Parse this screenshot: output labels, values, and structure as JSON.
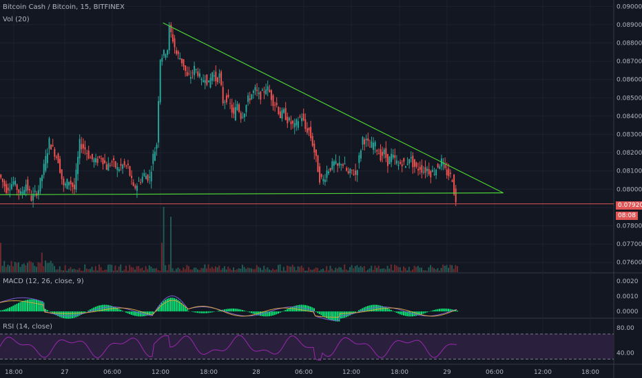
{
  "header": {
    "symbol": "Bitcoin Cash / Bitcoin, 15, BITFINEX",
    "volume_label": "Vol (20)",
    "macd_label": "MACD (12, 26, close, 9)",
    "rsi_label": "RSI (14, close)"
  },
  "price_tag": {
    "value": "0.07920",
    "countdown": "08:08"
  },
  "colors": {
    "background": "#131722",
    "up": "#26a69a",
    "down": "#ef5350",
    "trendline": "#4cd137",
    "price_line": "#e05656",
    "macd_line": "#7a5cd6",
    "signal_line": "#d9a440",
    "histogram": "#00e676",
    "rsi_line": "#9c27b0",
    "rsi_band": "#2a1f3d"
  },
  "chart_data": [
    {
      "type": "candlestick",
      "name": "price",
      "y_ticks": [
        "0.09000",
        "0.08900",
        "0.08800",
        "0.08700",
        "0.08600",
        "0.08500",
        "0.08400",
        "0.08300",
        "0.08200",
        "0.08100",
        "0.08000",
        "0.07900",
        "0.07800",
        "0.07700",
        "0.07600"
      ],
      "ylim": [
        0.0755,
        0.0902
      ],
      "x_ticks": [
        "18:00",
        "27",
        "06:00",
        "12:00",
        "18:00",
        "28",
        "06:00",
        "12:00",
        "18:00",
        "29",
        "06:00",
        "12:00",
        "18:00"
      ],
      "close_points": [
        {
          "t": 0,
          "v": 0.0808
        },
        {
          "t": 4,
          "v": 0.08
        },
        {
          "t": 8,
          "v": 0.0804
        },
        {
          "t": 12,
          "v": 0.0797
        },
        {
          "t": 15,
          "v": 0.0803
        },
        {
          "t": 18,
          "v": 0.0795
        },
        {
          "t": 22,
          "v": 0.08
        },
        {
          "t": 25,
          "v": 0.0812
        },
        {
          "t": 28,
          "v": 0.0826
        },
        {
          "t": 30,
          "v": 0.0822
        },
        {
          "t": 33,
          "v": 0.0816
        },
        {
          "t": 36,
          "v": 0.0801
        },
        {
          "t": 39,
          "v": 0.0805
        },
        {
          "t": 42,
          "v": 0.08
        },
        {
          "t": 45,
          "v": 0.0825
        },
        {
          "t": 48,
          "v": 0.0822
        },
        {
          "t": 51,
          "v": 0.0817
        },
        {
          "t": 54,
          "v": 0.0815
        },
        {
          "t": 57,
          "v": 0.0818
        },
        {
          "t": 60,
          "v": 0.0812
        },
        {
          "t": 63,
          "v": 0.0815
        },
        {
          "t": 66,
          "v": 0.0811
        },
        {
          "t": 69,
          "v": 0.0813
        },
        {
          "t": 72,
          "v": 0.0812
        },
        {
          "t": 75,
          "v": 0.08
        },
        {
          "t": 78,
          "v": 0.0804
        },
        {
          "t": 81,
          "v": 0.0808
        },
        {
          "t": 84,
          "v": 0.0806
        },
        {
          "t": 86,
          "v": 0.0818
        },
        {
          "t": 88,
          "v": 0.0825
        },
        {
          "t": 89,
          "v": 0.085
        },
        {
          "t": 90,
          "v": 0.0872
        },
        {
          "t": 92,
          "v": 0.0874
        },
        {
          "t": 94,
          "v": 0.0877
        },
        {
          "t": 95,
          "v": 0.0888
        },
        {
          "t": 97,
          "v": 0.0882
        },
        {
          "t": 99,
          "v": 0.0874
        },
        {
          "t": 101,
          "v": 0.0872
        },
        {
          "t": 103,
          "v": 0.0868
        },
        {
          "t": 105,
          "v": 0.0861
        },
        {
          "t": 107,
          "v": 0.0862
        },
        {
          "t": 109,
          "v": 0.0866
        },
        {
          "t": 111,
          "v": 0.0864
        },
        {
          "t": 113,
          "v": 0.0858
        },
        {
          "t": 115,
          "v": 0.0862
        },
        {
          "t": 117,
          "v": 0.0857
        },
        {
          "t": 119,
          "v": 0.0864
        },
        {
          "t": 121,
          "v": 0.086
        },
        {
          "t": 123,
          "v": 0.0862
        },
        {
          "t": 125,
          "v": 0.0848
        },
        {
          "t": 127,
          "v": 0.085
        },
        {
          "t": 129,
          "v": 0.0846
        },
        {
          "t": 131,
          "v": 0.084
        },
        {
          "t": 133,
          "v": 0.0847
        },
        {
          "t": 135,
          "v": 0.084
        },
        {
          "t": 137,
          "v": 0.0843
        },
        {
          "t": 139,
          "v": 0.0849
        },
        {
          "t": 141,
          "v": 0.0852
        },
        {
          "t": 143,
          "v": 0.0854
        },
        {
          "t": 145,
          "v": 0.0851
        },
        {
          "t": 147,
          "v": 0.0852
        },
        {
          "t": 149,
          "v": 0.0856
        },
        {
          "t": 151,
          "v": 0.0853
        },
        {
          "t": 153,
          "v": 0.0848
        },
        {
          "t": 155,
          "v": 0.0846
        },
        {
          "t": 157,
          "v": 0.084
        },
        {
          "t": 159,
          "v": 0.0842
        },
        {
          "t": 161,
          "v": 0.0838
        },
        {
          "t": 163,
          "v": 0.0836
        },
        {
          "t": 165,
          "v": 0.0834
        },
        {
          "t": 167,
          "v": 0.0838
        },
        {
          "t": 169,
          "v": 0.084
        },
        {
          "t": 171,
          "v": 0.0833
        },
        {
          "t": 173,
          "v": 0.0832
        },
        {
          "t": 175,
          "v": 0.0825
        },
        {
          "t": 177,
          "v": 0.0816
        },
        {
          "t": 179,
          "v": 0.0806
        },
        {
          "t": 181,
          "v": 0.0805
        },
        {
          "t": 183,
          "v": 0.081
        },
        {
          "t": 185,
          "v": 0.0812
        },
        {
          "t": 187,
          "v": 0.0814
        },
        {
          "t": 189,
          "v": 0.0812
        },
        {
          "t": 191,
          "v": 0.0815
        },
        {
          "t": 193,
          "v": 0.0812
        },
        {
          "t": 195,
          "v": 0.0808
        },
        {
          "t": 197,
          "v": 0.081
        },
        {
          "t": 199,
          "v": 0.0808
        },
        {
          "t": 201,
          "v": 0.0817
        },
        {
          "t": 203,
          "v": 0.0828
        },
        {
          "t": 205,
          "v": 0.0826
        },
        {
          "t": 207,
          "v": 0.0823
        },
        {
          "t": 209,
          "v": 0.0825
        },
        {
          "t": 211,
          "v": 0.0822
        },
        {
          "t": 213,
          "v": 0.0818
        },
        {
          "t": 215,
          "v": 0.082
        },
        {
          "t": 217,
          "v": 0.0815
        },
        {
          "t": 219,
          "v": 0.0818
        },
        {
          "t": 221,
          "v": 0.0816
        },
        {
          "t": 223,
          "v": 0.0813
        },
        {
          "t": 225,
          "v": 0.0815
        },
        {
          "t": 227,
          "v": 0.0812
        },
        {
          "t": 229,
          "v": 0.0818
        },
        {
          "t": 231,
          "v": 0.0814
        },
        {
          "t": 233,
          "v": 0.0811
        },
        {
          "t": 235,
          "v": 0.0812
        },
        {
          "t": 237,
          "v": 0.081
        },
        {
          "t": 239,
          "v": 0.0811
        },
        {
          "t": 241,
          "v": 0.0809
        },
        {
          "t": 243,
          "v": 0.081
        },
        {
          "t": 245,
          "v": 0.0813
        },
        {
          "t": 247,
          "v": 0.0815
        },
        {
          "t": 249,
          "v": 0.081
        },
        {
          "t": 251,
          "v": 0.0808
        },
        {
          "t": 253,
          "v": 0.0806
        },
        {
          "t": 255,
          "v": 0.0792
        }
      ],
      "trendlines": [
        {
          "from": {
            "t": 91,
            "v": 0.0891
          },
          "to": {
            "t": 281,
            "v": 0.0798
          }
        },
        {
          "from": {
            "t": 0,
            "v": 0.0797
          },
          "to": {
            "t": 281,
            "v": 0.0798
          }
        }
      ],
      "last_price": 0.0792
    },
    {
      "type": "bar",
      "name": "volume",
      "spikes": [
        {
          "t": 91,
          "v": 1.0
        },
        {
          "t": 95,
          "v": 0.85
        },
        {
          "t": 90,
          "v": 0.45
        },
        {
          "t": 0,
          "v": 0.45
        },
        {
          "t": 23,
          "v": 0.3
        }
      ]
    },
    {
      "type": "line",
      "name": "MACD",
      "y_ticks": [
        "0.0020",
        "0.0010",
        "0.0000"
      ],
      "ylim": [
        -0.0004,
        0.0024
      ]
    },
    {
      "type": "line",
      "name": "RSI",
      "y_ticks": [
        "80.00",
        "40.00"
      ],
      "ylim": [
        25,
        92
      ],
      "bands": [
        30,
        70
      ]
    }
  ]
}
